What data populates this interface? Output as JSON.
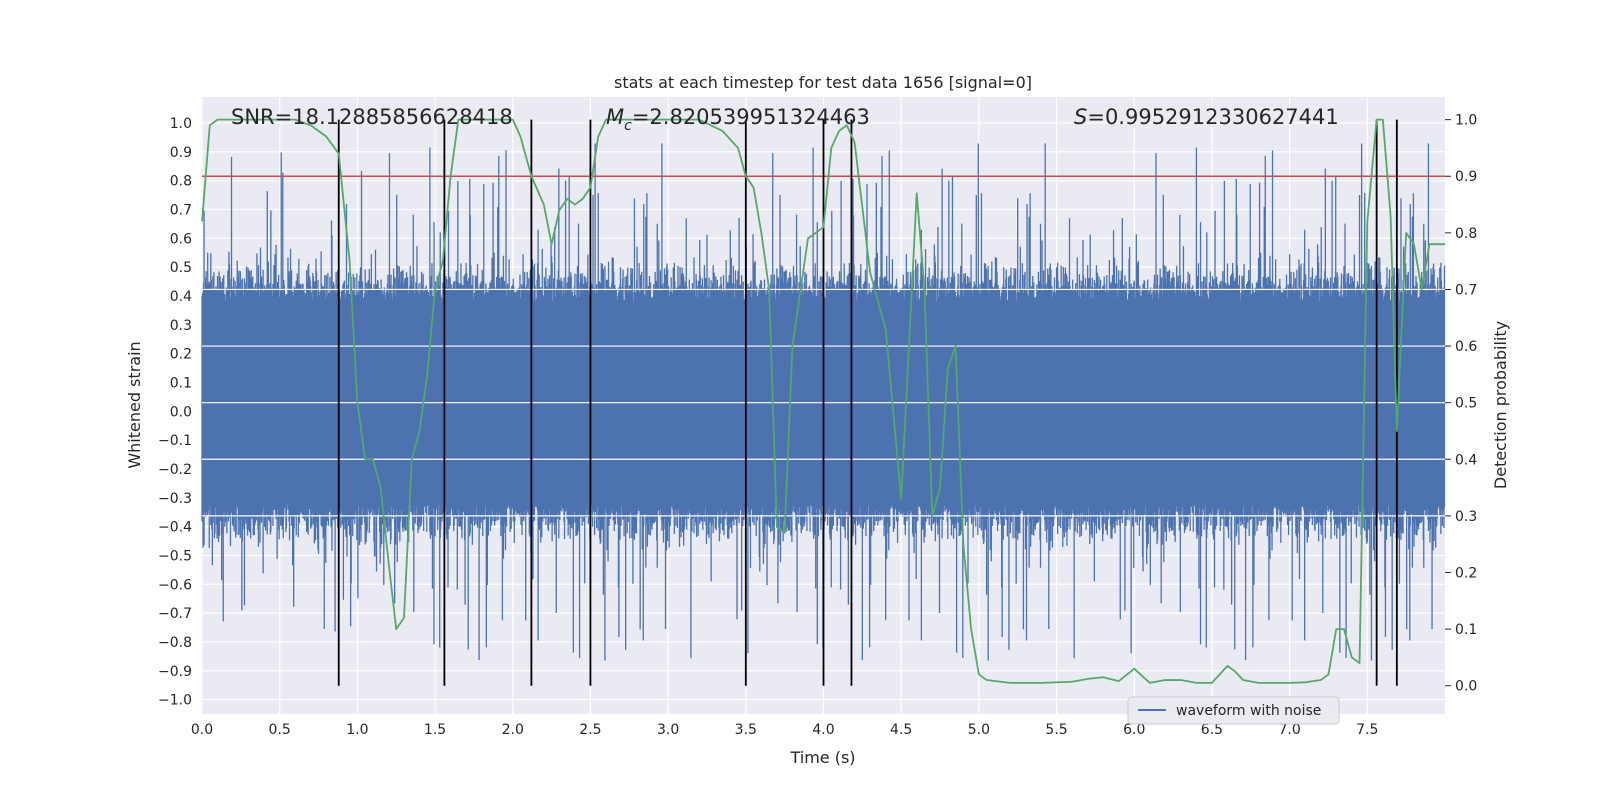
{
  "chart_data": {
    "type": "line",
    "title": "stats at each timestep for test data 1656 [signal=0]",
    "xlabel": "Time (s)",
    "ylabel_left": "Whitened strain",
    "ylabel_right": "Detection probability",
    "xlim": [
      0,
      8.0
    ],
    "ylim_left": [
      -1.05,
      1.09
    ],
    "ylim_right": [
      -0.05,
      1.04
    ],
    "x_ticks": [
      "0.0",
      "0.5",
      "1.0",
      "1.5",
      "2.0",
      "2.5",
      "3.0",
      "3.5",
      "4.0",
      "4.5",
      "5.0",
      "5.5",
      "6.0",
      "6.5",
      "7.0",
      "7.5"
    ],
    "y_ticks_left": [
      "1.0",
      "0.9",
      "0.8",
      "0.7",
      "0.6",
      "0.5",
      "0.4",
      "0.3",
      "0.2",
      "0.1",
      "0.0",
      "-0.1",
      "-0.2",
      "-0.3",
      "-0.4",
      "-0.5",
      "-0.6",
      "-0.7",
      "-0.8",
      "-0.9",
      "-1.0"
    ],
    "y_ticks_right": [
      "1.0",
      "0.9",
      "0.8",
      "0.7",
      "0.6",
      "0.5",
      "0.4",
      "0.3",
      "0.2",
      "0.1",
      "0.0"
    ],
    "grid": true,
    "annotations": {
      "snr": "SNR=18.12885856628418",
      "mc_sym": "M",
      "mc_sub": "c",
      "mc_val": "=2.820539951324463",
      "s_sym": "S",
      "s_val": "=0.9952912330627441"
    },
    "legend": {
      "position": "lower-right",
      "entries": [
        "waveform with noise"
      ]
    },
    "threshold": {
      "y": 0.9,
      "axis": "right",
      "color": "#c44e52"
    },
    "vlines": [
      0.88,
      1.56,
      2.12,
      2.5,
      3.5,
      4.0,
      4.18,
      7.56,
      7.69
    ],
    "series": [
      {
        "name": "waveform with noise",
        "axis": "left",
        "color": "#4c72b0",
        "band": {
          "inner_low": -0.32,
          "inner_high": 0.38,
          "envelope_low": -0.55,
          "envelope_high": 0.55,
          "samples": 2400,
          "x_start": 0,
          "x_end": 8.0
        }
      },
      {
        "axis": "right",
        "color": "#55a868",
        "x": [
          0.0,
          0.05,
          0.1,
          0.2,
          0.3,
          0.4,
          0.5,
          0.6,
          0.7,
          0.8,
          0.88,
          0.95,
          1.0,
          1.05,
          1.1,
          1.15,
          1.2,
          1.25,
          1.3,
          1.35,
          1.4,
          1.45,
          1.5,
          1.55,
          1.6,
          1.65,
          1.7,
          1.8,
          1.9,
          2.0,
          2.05,
          2.12,
          2.2,
          2.25,
          2.3,
          2.35,
          2.4,
          2.45,
          2.5,
          2.55,
          2.6,
          2.7,
          2.8,
          3.0,
          3.2,
          3.35,
          3.45,
          3.5,
          3.55,
          3.6,
          3.65,
          3.7,
          3.75,
          3.8,
          3.9,
          4.0,
          4.05,
          4.1,
          4.15,
          4.2,
          4.3,
          4.4,
          4.5,
          4.55,
          4.6,
          4.65,
          4.7,
          4.75,
          4.8,
          4.85,
          4.9,
          4.95,
          5.0,
          5.05,
          5.2,
          5.4,
          5.6,
          5.7,
          5.8,
          5.9,
          6.0,
          6.1,
          6.2,
          6.3,
          6.4,
          6.5,
          6.6,
          6.65,
          6.7,
          6.8,
          6.9,
          7.0,
          7.1,
          7.2,
          7.25,
          7.3,
          7.35,
          7.4,
          7.45,
          7.5,
          7.56,
          7.6,
          7.65,
          7.69,
          7.75,
          7.8,
          7.85,
          7.9,
          7.95,
          8.0
        ],
        "y": [
          0.82,
          0.99,
          1.0,
          1.0,
          1.0,
          1.0,
          1.0,
          1.0,
          0.99,
          0.97,
          0.94,
          0.75,
          0.5,
          0.4,
          0.4,
          0.35,
          0.22,
          0.1,
          0.12,
          0.4,
          0.45,
          0.55,
          0.7,
          0.75,
          0.9,
          1.0,
          1.0,
          1.0,
          1.0,
          1.0,
          0.97,
          0.9,
          0.85,
          0.78,
          0.84,
          0.86,
          0.85,
          0.86,
          0.88,
          0.97,
          1.0,
          1.0,
          1.0,
          1.0,
          1.0,
          0.98,
          0.95,
          0.9,
          0.88,
          0.8,
          0.7,
          0.28,
          0.27,
          0.6,
          0.79,
          0.81,
          0.95,
          0.98,
          0.99,
          0.96,
          0.73,
          0.63,
          0.33,
          0.6,
          0.87,
          0.7,
          0.3,
          0.35,
          0.56,
          0.6,
          0.25,
          0.1,
          0.02,
          0.01,
          0.005,
          0.005,
          0.007,
          0.012,
          0.015,
          0.008,
          0.03,
          0.005,
          0.01,
          0.01,
          0.005,
          0.005,
          0.035,
          0.025,
          0.01,
          0.005,
          0.005,
          0.005,
          0.006,
          0.01,
          0.02,
          0.1,
          0.1,
          0.05,
          0.04,
          0.82,
          1.0,
          1.0,
          0.83,
          0.45,
          0.8,
          0.78,
          0.7,
          0.78,
          0.78,
          0.78
        ]
      }
    ]
  }
}
